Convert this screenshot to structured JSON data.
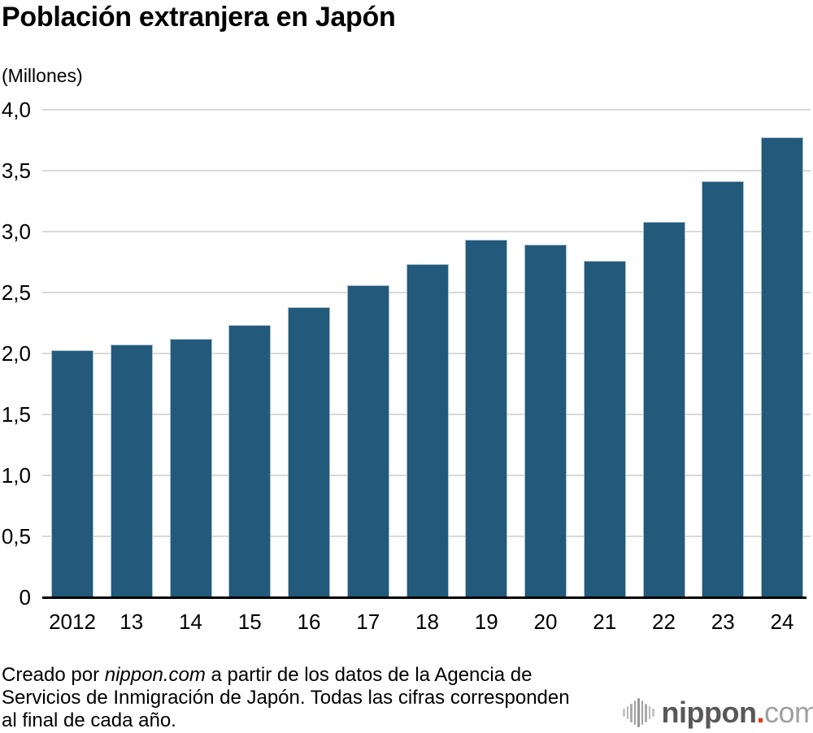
{
  "header": {
    "title": "Población extranjera en Japón",
    "unit_label": "(Millones)"
  },
  "chart_data": {
    "type": "bar",
    "title": "Población extranjera en Japón",
    "unit": "Millones",
    "categories": [
      "2012",
      "13",
      "14",
      "15",
      "16",
      "17",
      "18",
      "19",
      "20",
      "21",
      "22",
      "23",
      "24"
    ],
    "values": [
      2.03,
      2.07,
      2.12,
      2.23,
      2.38,
      2.56,
      2.73,
      2.93,
      2.89,
      2.76,
      3.08,
      3.41,
      3.77
    ],
    "ylim": [
      0,
      4.0
    ],
    "yticks": [
      {
        "value": 4.0,
        "label": "4,0"
      },
      {
        "value": 3.5,
        "label": "3,5"
      },
      {
        "value": 3.0,
        "label": "3,0"
      },
      {
        "value": 2.5,
        "label": "2,5"
      },
      {
        "value": 2.0,
        "label": "2,0"
      },
      {
        "value": 1.5,
        "label": "1,5"
      },
      {
        "value": 1.0,
        "label": "1,0"
      },
      {
        "value": 0.5,
        "label": "0,5"
      },
      {
        "value": 0,
        "label": "0"
      }
    ],
    "grid": true,
    "legend": false,
    "bar_color": "#23597a",
    "gridline_color": "#d9d9d9",
    "axis_color": "#000000"
  },
  "footer": {
    "line1_prefix": "Creado por ",
    "line1_brand": "nippon.com",
    "line1_suffix": " a partir de los datos de la Agencia de",
    "line2": "Servicios de Inmigración de Japón. Todas las cifras corresponden",
    "line3": "al final de cada año."
  },
  "logo": {
    "icon": "waveform-icon",
    "brand_bold": "nippon",
    "brand_dot": ".",
    "brand_suffix": "com",
    "colors": {
      "bold": "#595757",
      "dot": "#e8380d",
      "suffix": "#9fa0a0"
    }
  }
}
